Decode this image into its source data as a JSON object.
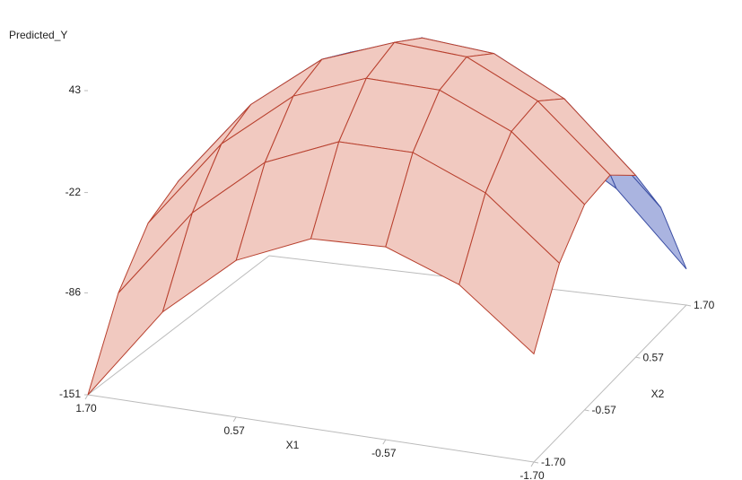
{
  "chart_data": {
    "type": "surface3d",
    "z_label": "Predicted_Y",
    "x_label": "X1",
    "y_label": "X2",
    "x1": [
      -1.7,
      -1.13,
      -0.57,
      0,
      0.57,
      1.13,
      1.7
    ],
    "x2": [
      -1.7,
      -1.13,
      -0.57,
      0,
      0.57,
      1.13,
      1.7
    ],
    "z": [
      [
        -82,
        -41,
        -20,
        -18,
        -35,
        -72,
        -128
      ],
      [
        -45,
        -3,
        20,
        23,
        8,
        -27,
        -82
      ],
      [
        -28,
        16,
        40,
        45,
        31,
        -2,
        -55
      ],
      [
        -30,
        16,
        41,
        48,
        35,
        3,
        -48
      ],
      [
        -51,
        -4,
        23,
        31,
        20,
        -10,
        -60
      ],
      [
        -91,
        -43,
        -14,
        -4,
        -14,
        -43,
        -91
      ],
      [
        -151,
        -101,
        -71,
        -59,
        -68,
        -95,
        -142
      ]
    ],
    "xlim": [
      -1.7,
      1.7
    ],
    "ylim": [
      -1.7,
      1.7
    ],
    "zlim": [
      -151,
      43
    ],
    "xticks": [
      {
        "value": 1.7,
        "label": "1.70"
      },
      0.57,
      -0.57,
      {
        "value": -1.7,
        "label": "-1.70"
      }
    ],
    "yticks": [
      {
        "value": -1.7,
        "label": "-1.70"
      },
      -0.57,
      0.57,
      {
        "value": 1.7,
        "label": "1.70"
      }
    ],
    "zticks": [
      -151,
      -86,
      -22,
      43
    ],
    "color": "#3b4ea3",
    "underside_color": "#b8402e"
  }
}
